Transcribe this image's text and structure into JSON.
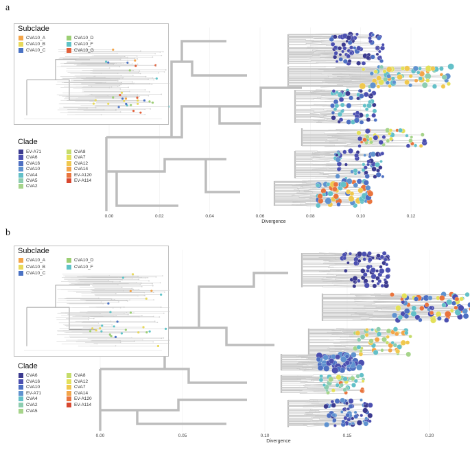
{
  "panels": [
    {
      "letter": "a",
      "subclade_title": "Subclade",
      "subclades": [
        {
          "label": "CVA10_A",
          "color": "#f4a54a"
        },
        {
          "label": "CVA10_B",
          "color": "#e8d95a"
        },
        {
          "label": "CVA10_C",
          "color": "#4a72c4"
        },
        {
          "label": "CVA10_D",
          "color": "#9ccf74"
        },
        {
          "label": "CVA10_F",
          "color": "#5fc3c7"
        },
        {
          "label": "CVA10_G",
          "color": "#e3603a"
        }
      ],
      "clade_title": "Clade",
      "clades": [
        {
          "label": "EV-A71",
          "color": "#3b3a8f"
        },
        {
          "label": "CVA6",
          "color": "#4b4fb0"
        },
        {
          "label": "CVA16",
          "color": "#4d6fc2"
        },
        {
          "label": "CVA10",
          "color": "#5f92cf"
        },
        {
          "label": "CVA4",
          "color": "#63c0c8"
        },
        {
          "label": "CVA5",
          "color": "#8dcdb0"
        },
        {
          "label": "CVA2",
          "color": "#a6d48a"
        },
        {
          "label": "CVA8",
          "color": "#c5dc6b"
        },
        {
          "label": "CVA7",
          "color": "#e3e05a"
        },
        {
          "label": "CVA12",
          "color": "#f0c84e"
        },
        {
          "label": "CVA14",
          "color": "#f3a54a"
        },
        {
          "label": "EV-A120",
          "color": "#e9743d"
        },
        {
          "label": "EV-A114",
          "color": "#d8472f"
        }
      ],
      "axis": {
        "title": "Divergence",
        "ticks": [
          "0.00",
          "0.02",
          "0.04",
          "0.06",
          "0.08",
          "0.10",
          "0.12"
        ]
      }
    },
    {
      "letter": "b",
      "subclade_title": "Subclade",
      "subclades": [
        {
          "label": "CVA10_A",
          "color": "#f4a54a"
        },
        {
          "label": "CVA10_B",
          "color": "#e8d95a"
        },
        {
          "label": "CVA10_C",
          "color": "#4a72c4"
        },
        {
          "label": "CVA10_D",
          "color": "#9ccf74"
        },
        {
          "label": "CVA10_F",
          "color": "#5fc3c7"
        }
      ],
      "clade_title": "Clade",
      "clades": [
        {
          "label": "CVA6",
          "color": "#3b3a8f"
        },
        {
          "label": "CVA16",
          "color": "#4b4fb0"
        },
        {
          "label": "CVA10",
          "color": "#4d6fc2"
        },
        {
          "label": "EV-A71",
          "color": "#5f92cf"
        },
        {
          "label": "CVA4",
          "color": "#63c0c8"
        },
        {
          "label": "CVA2",
          "color": "#8dcdb0"
        },
        {
          "label": "CVA5",
          "color": "#a6d48a"
        },
        {
          "label": "CVA8",
          "color": "#c5dc6b"
        },
        {
          "label": "CVA12",
          "color": "#e3e05a"
        },
        {
          "label": "CVA7",
          "color": "#f0c84e"
        },
        {
          "label": "CVA14",
          "color": "#f3a54a"
        },
        {
          "label": "EV-A120",
          "color": "#e9743d"
        },
        {
          "label": "EV-A114",
          "color": "#d8472f"
        }
      ],
      "axis": {
        "title": "Divergence",
        "ticks": [
          "0.00",
          "0.05",
          "0.10",
          "0.15",
          "0.20"
        ]
      }
    }
  ]
}
